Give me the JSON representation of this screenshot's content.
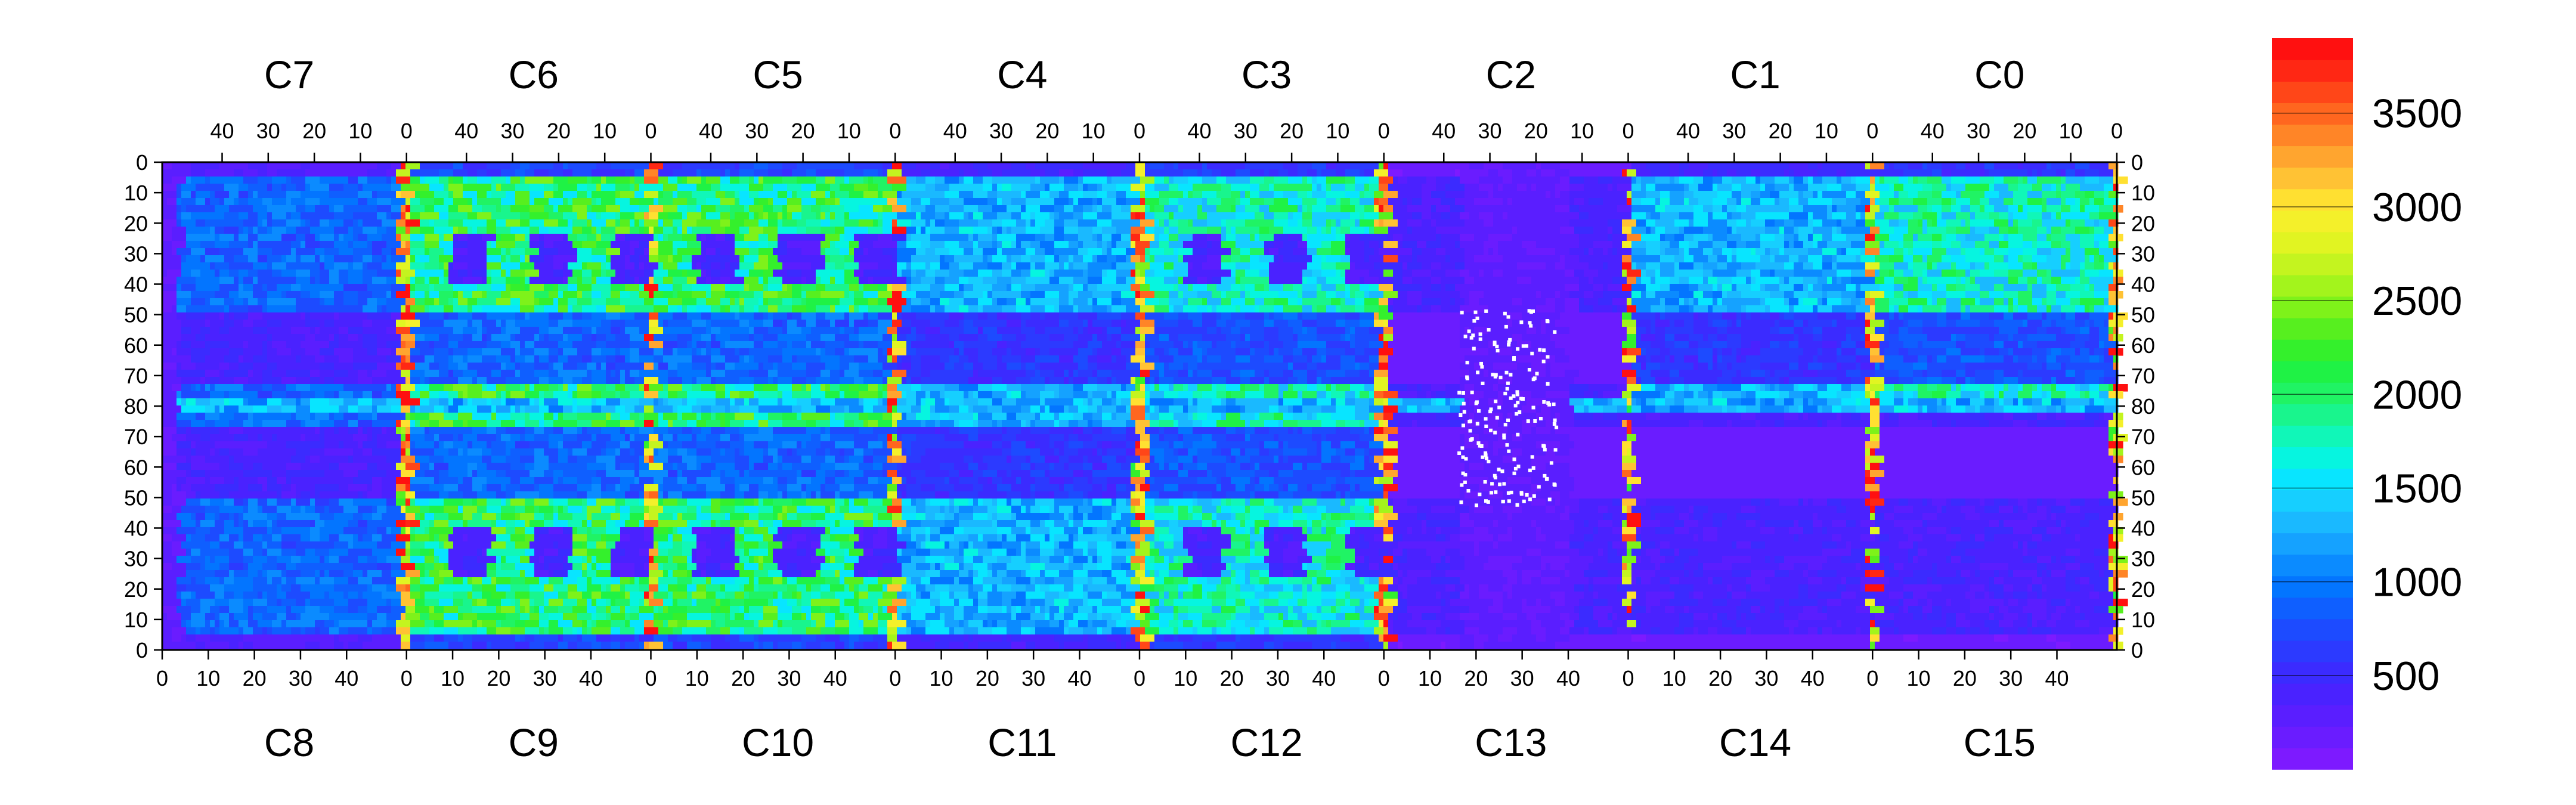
{
  "chart_data": {
    "type": "heatmap",
    "title": "",
    "xlabel": "",
    "ylabel": "",
    "top_sectors": [
      "C7",
      "C6",
      "C5",
      "C4",
      "C3",
      "C2",
      "C1",
      "C0"
    ],
    "bottom_sectors": [
      "C8",
      "C9",
      "C10",
      "C11",
      "C12",
      "C13",
      "C14",
      "C15"
    ],
    "sector_axis_range": [
      0,
      53
    ],
    "top_axis_ticks": [
      "40",
      "30",
      "20",
      "10",
      "0"
    ],
    "bottom_axis_ticks": [
      "0",
      "10",
      "20",
      "30",
      "40"
    ],
    "y_axis_ticks": [
      "0",
      "10",
      "20",
      "30",
      "40",
      "50",
      "60",
      "70",
      "80",
      "70",
      "60",
      "50",
      "40",
      "30",
      "20",
      "10",
      "0"
    ],
    "y_axis_range": [
      0,
      160
    ],
    "z_range": [
      0,
      3900
    ],
    "colorbar_ticks": [
      500,
      1000,
      1500,
      2000,
      2500,
      3000,
      3500
    ],
    "palette": [
      "#7d1aff",
      "#6a1cff",
      "#5a1eff",
      "#4a22ff",
      "#3b2bff",
      "#2c3aff",
      "#1d4bff",
      "#0f5fff",
      "#0375ff",
      "#0b8bff",
      "#15a2ff",
      "#1ab9ff",
      "#16cfff",
      "#08e5ff",
      "#06f5e0",
      "#10f7b8",
      "#19f58d",
      "#20f364",
      "#1ff245",
      "#34f02c",
      "#57ef1f",
      "#7ef21a",
      "#a3f41c",
      "#c4f41f",
      "#e1f422",
      "#f4f02a",
      "#ffe031",
      "#ffc234",
      "#ffa52f",
      "#ff8527",
      "#ff661f",
      "#ff4618",
      "#ff2714",
      "#ff1010"
    ],
    "texture": "fine checkerboard cells with blocky regions",
    "regions": [
      {
        "sector": "C7",
        "level": "low-mid"
      },
      {
        "sector": "C6",
        "level": "high"
      },
      {
        "sector": "C5",
        "level": "high"
      },
      {
        "sector": "C4",
        "level": "mid"
      },
      {
        "sector": "C3",
        "level": "mid-high"
      },
      {
        "sector": "C2",
        "level": "low"
      },
      {
        "sector": "C1",
        "level": "mid"
      },
      {
        "sector": "C0",
        "level": "mid-high"
      },
      {
        "sector": "C8",
        "level": "low-mid"
      },
      {
        "sector": "C9",
        "level": "high"
      },
      {
        "sector": "C10",
        "level": "high"
      },
      {
        "sector": "C11",
        "level": "mid"
      },
      {
        "sector": "C12",
        "level": "mid-high"
      },
      {
        "sector": "C13",
        "level": "low"
      },
      {
        "sector": "C14",
        "level": "low"
      },
      {
        "sector": "C15",
        "level": "low"
      }
    ]
  }
}
